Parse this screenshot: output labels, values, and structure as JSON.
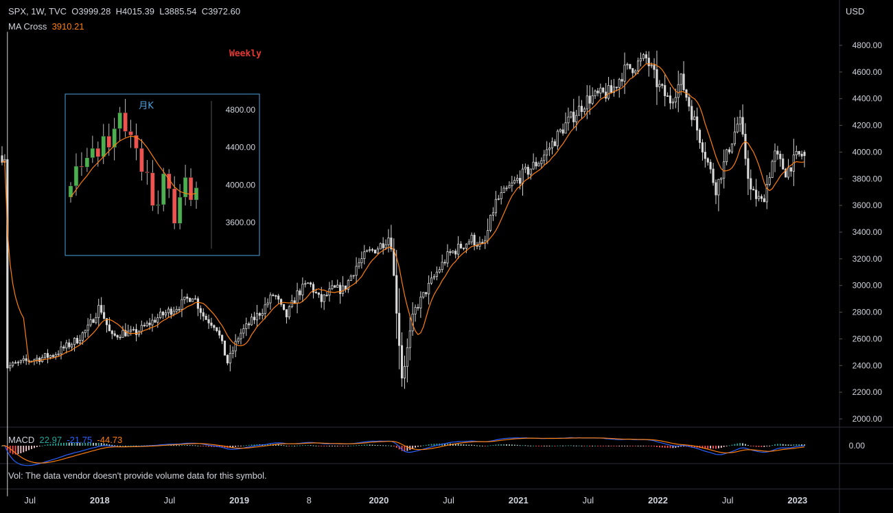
{
  "header": {
    "symbol_line": "SPX, 1W, TVC",
    "open": "O3999.28",
    "high": "H4015.39",
    "low": "L3885.54",
    "close": "C3972.60",
    "ma_label": "MA Cross",
    "ma_value": "3910.21"
  },
  "annotation": {
    "weekly_label": "Weekly",
    "inset_title": "月K"
  },
  "price_axis": {
    "currency": "USD",
    "ticks": [
      "4800.00",
      "4600.00",
      "4400.00",
      "4200.00",
      "4000.00",
      "3800.00",
      "3600.00",
      "3400.00",
      "3200.00",
      "3000.00",
      "2800.00",
      "2600.00",
      "2400.00",
      "2200.00",
      "2000.00"
    ]
  },
  "macd": {
    "label": "MACD",
    "hist": "22.97",
    "macd": "-21.75",
    "signal": "-44.73",
    "ticks": [
      "0.00"
    ]
  },
  "volume": {
    "message": "Vol: The data vendor doesn't provide volume data for this symbol."
  },
  "time_axis": {
    "labels": [
      "Jul",
      "2018",
      "Jul",
      "2019",
      "8",
      "2020",
      "Jul",
      "2021",
      "Jul",
      "2022",
      "Jul",
      "2023"
    ],
    "bold": [
      false,
      true,
      false,
      true,
      false,
      true,
      false,
      true,
      false,
      true,
      false,
      true
    ]
  },
  "colors": {
    "background": "#000000",
    "up": "#4caf50",
    "down": "#ef5350",
    "candle_main": "#d9d9d9",
    "ma": "#ff7f0e",
    "macd_line": "#2962ff",
    "signal_line": "#ff7f0e",
    "inset_border": "#4aa3df",
    "weekly_label": "#e53935"
  },
  "chart_data": [
    {
      "type": "candlestick",
      "series_name": "SPX weekly",
      "x_labels": [
        "Jul",
        "2018",
        "Jul",
        "2019",
        "8",
        "2020",
        "Jul",
        "2021",
        "Jul",
        "2022",
        "Jul",
        "2023"
      ],
      "ylim": [
        2000,
        4900
      ],
      "ohlc_last": {
        "open": 3999.28,
        "high": 4015.39,
        "low": 3885.54,
        "close": 3972.6
      },
      "ma_last": 3910.21,
      "close_path": [
        [
          "2017-05",
          2390
        ],
        [
          "2017-07",
          2440
        ],
        [
          "2017-09",
          2480
        ],
        [
          "2017-11",
          2590
        ],
        [
          "2017-12",
          2680
        ],
        [
          "2018-01",
          2850
        ],
        [
          "2018-02",
          2610
        ],
        [
          "2018-03",
          2650
        ],
        [
          "2018-04",
          2640
        ],
        [
          "2018-06",
          2760
        ],
        [
          "2018-08",
          2860
        ],
        [
          "2018-09",
          2930
        ],
        [
          "2018-10",
          2760
        ],
        [
          "2018-11",
          2700
        ],
        [
          "2018-12",
          2420
        ],
        [
          "2019-01",
          2630
        ],
        [
          "2019-03",
          2820
        ],
        [
          "2019-04",
          2940
        ],
        [
          "2019-05",
          2760
        ],
        [
          "2019-06",
          2940
        ],
        [
          "2019-07",
          3020
        ],
        [
          "2019-08",
          2880
        ],
        [
          "2019-09",
          2970
        ],
        [
          "2019-10",
          2970
        ],
        [
          "2019-11",
          3140
        ],
        [
          "2019-12",
          3240
        ],
        [
          "2020-01",
          3290
        ],
        [
          "2020-02",
          3380
        ],
        [
          "2020-03",
          2300
        ],
        [
          "2020-04",
          2800
        ],
        [
          "2020-06",
          3100
        ],
        [
          "2020-07",
          3230
        ],
        [
          "2020-09",
          3350
        ],
        [
          "2020-10",
          3280
        ],
        [
          "2020-11",
          3620
        ],
        [
          "2021-01",
          3800
        ],
        [
          "2021-03",
          3950
        ],
        [
          "2021-05",
          4200
        ],
        [
          "2021-07",
          4400
        ],
        [
          "2021-09",
          4450
        ],
        [
          "2021-10",
          4600
        ],
        [
          "2021-12",
          4700
        ],
        [
          "2022-01",
          4500
        ],
        [
          "2022-02",
          4380
        ],
        [
          "2022-03",
          4540
        ],
        [
          "2022-05",
          4000
        ],
        [
          "2022-06",
          3720
        ],
        [
          "2022-07",
          4000
        ],
        [
          "2022-08",
          4250
        ],
        [
          "2022-09",
          3700
        ],
        [
          "2022-10",
          3620
        ],
        [
          "2022-11",
          3990
        ],
        [
          "2022-12",
          3850
        ],
        [
          "2023-01",
          3972.6
        ]
      ]
    },
    {
      "type": "candlestick",
      "title": "月K",
      "ylim": [
        3400,
        5000
      ],
      "yticks": [
        "4800.00",
        "4400.00",
        "4000.00",
        "3600.00"
      ],
      "closes": [
        3990,
        4200,
        4190,
        4290,
        4390,
        4300,
        4520,
        4400,
        4600,
        4770,
        4570,
        4530,
        4390,
        4140,
        4130,
        3780,
        3790,
        4120,
        3960,
        3590,
        3870,
        4080,
        3840,
        3970
      ],
      "ma": [
        3870,
        3950,
        4030,
        4100,
        4180,
        4240,
        4300,
        4360,
        4420,
        4470,
        4500,
        4520,
        4510,
        4470,
        4400,
        4310,
        4220,
        4140,
        4060,
        3980,
        3930,
        3910,
        3900,
        3910
      ]
    },
    {
      "type": "line",
      "name": "MACD",
      "values_last": {
        "histogram": 22.97,
        "macd": -21.75,
        "signal": -44.73
      },
      "yticks": [
        "0.00"
      ]
    }
  ]
}
